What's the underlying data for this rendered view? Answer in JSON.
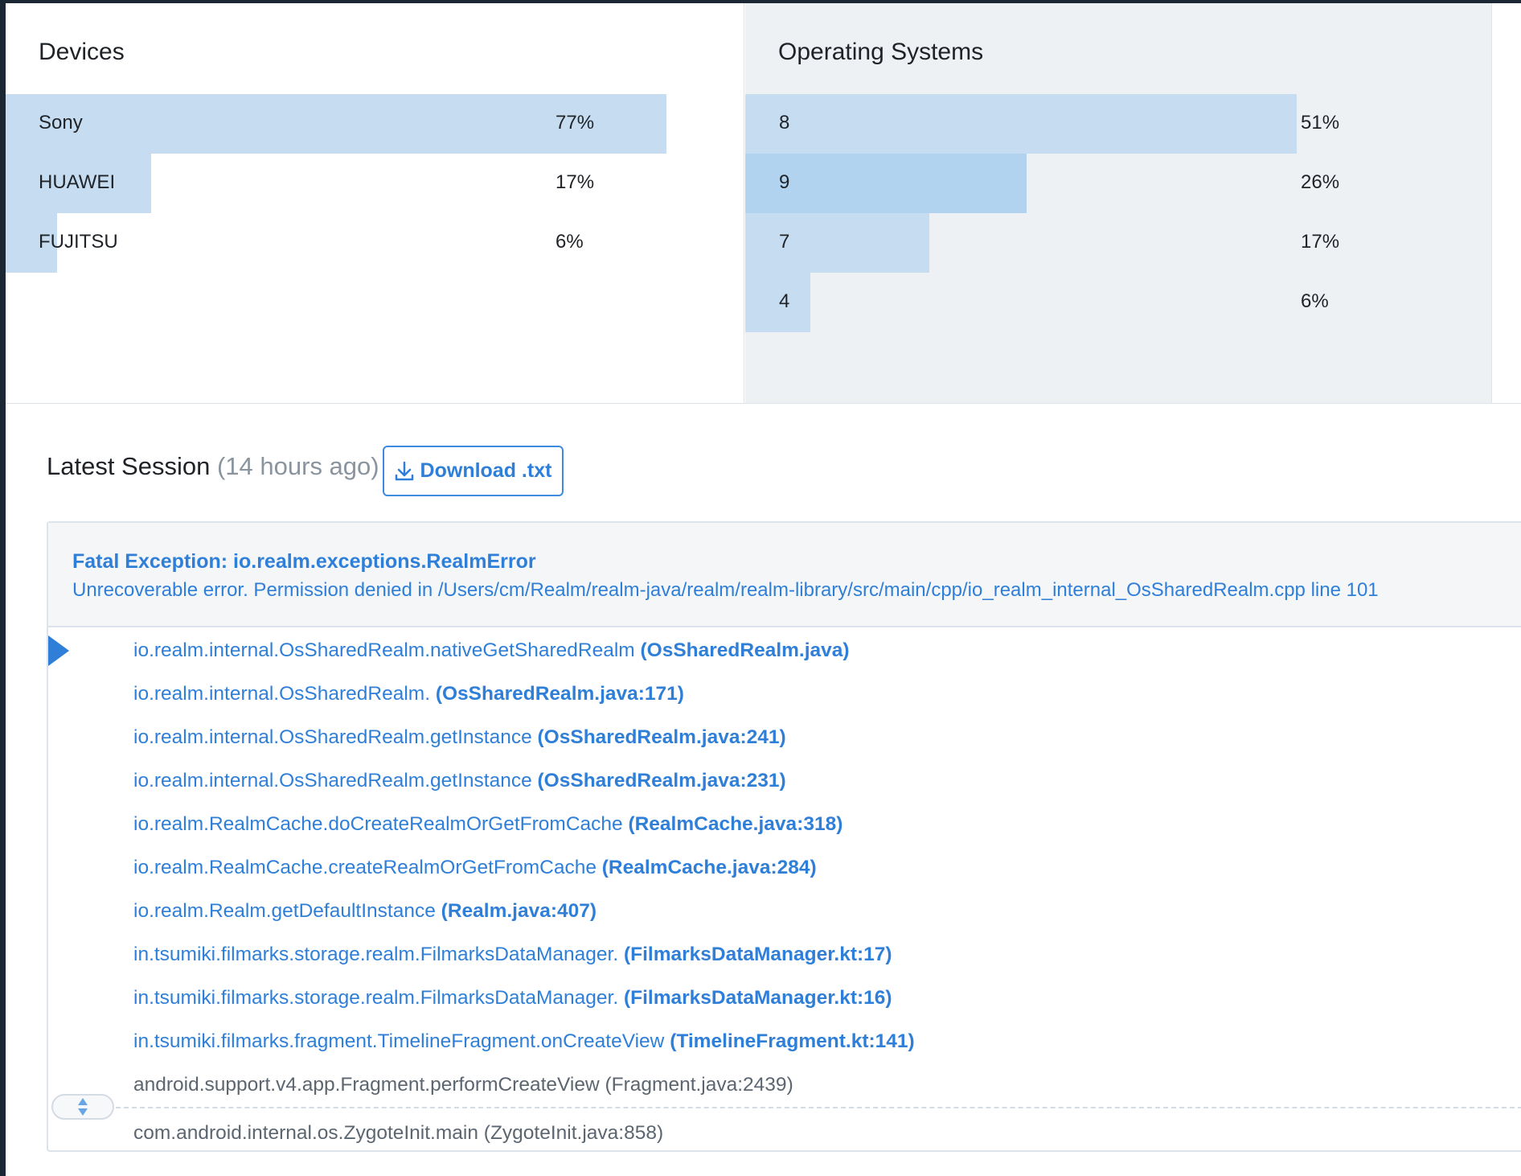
{
  "devices": {
    "title": "Devices",
    "items": [
      {
        "label": "Sony",
        "pct": "77%",
        "share": 0.77
      },
      {
        "label": "HUAWEI",
        "pct": "17%",
        "share": 0.17
      },
      {
        "label": "FUJITSU",
        "pct": "6%",
        "share": 0.06
      }
    ]
  },
  "os": {
    "title": "Operating Systems",
    "items": [
      {
        "label": "8",
        "pct": "51%",
        "share": 0.51
      },
      {
        "label": "9",
        "pct": "26%",
        "share": 0.26
      },
      {
        "label": "7",
        "pct": "17%",
        "share": 0.17
      },
      {
        "label": "4",
        "pct": "6%",
        "share": 0.06
      }
    ]
  },
  "session": {
    "title": "Latest Session",
    "ago": "(14 hours ago)",
    "download_label": "Download .txt"
  },
  "exception": {
    "title": "Fatal Exception: io.realm.exceptions.RealmError",
    "message": "Unrecoverable error. Permission denied in /Users/cm/Realm/realm-java/realm/realm-library/src/main/cpp/io_realm_internal_OsSharedRealm.cpp line 101"
  },
  "frames": [
    {
      "symbol": "io.realm.internal.OsSharedRealm.nativeGetSharedRealm",
      "loc": "(OsSharedRealm.java)"
    },
    {
      "symbol": "io.realm.internal.OsSharedRealm.",
      "loc": "(OsSharedRealm.java:171)"
    },
    {
      "symbol": "io.realm.internal.OsSharedRealm.getInstance",
      "loc": "(OsSharedRealm.java:241)"
    },
    {
      "symbol": "io.realm.internal.OsSharedRealm.getInstance",
      "loc": "(OsSharedRealm.java:231)"
    },
    {
      "symbol": "io.realm.RealmCache.doCreateRealmOrGetFromCache",
      "loc": "(RealmCache.java:318)"
    },
    {
      "symbol": "io.realm.RealmCache.createRealmOrGetFromCache",
      "loc": "(RealmCache.java:284)"
    },
    {
      "symbol": "io.realm.Realm.getDefaultInstance",
      "loc": "(Realm.java:407)"
    },
    {
      "symbol": "in.tsumiki.filmarks.storage.realm.FilmarksDataManager.",
      "loc": "(FilmarksDataManager.kt:17)"
    },
    {
      "symbol": "in.tsumiki.filmarks.storage.realm.FilmarksDataManager.",
      "loc": "(FilmarksDataManager.kt:16)"
    },
    {
      "symbol": "in.tsumiki.filmarks.fragment.TimelineFragment.onCreateView",
      "loc": "(TimelineFragment.kt:141)"
    },
    {
      "symbol": "android.support.v4.app.Fragment.performCreateView",
      "loc": "(Fragment.java:2439)"
    },
    {
      "symbol": "com.android.internal.os.ZygoteInit.main",
      "loc": "(ZygoteInit.java:858)"
    }
  ],
  "colors": {
    "accent": "#2f7fd8",
    "bar": "#c5dcf1",
    "bar_highlight": "#b1d3ef",
    "muted": "#5c6670",
    "nav_dark": "#1b2733"
  },
  "icons": {
    "download": "download-icon",
    "expand": "expand-collapse-icon",
    "current_frame": "current-frame-marker-icon"
  }
}
